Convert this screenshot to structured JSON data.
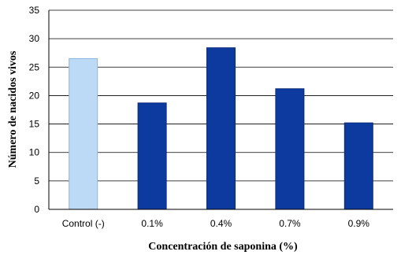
{
  "chart_data": {
    "type": "bar",
    "title": "",
    "xlabel": "Concentración de saponina (%)",
    "ylabel": "Número de nacidos vivos",
    "categories": [
      "Control (-)",
      "0.1%",
      "0.4%",
      "0.7%",
      "0.9%"
    ],
    "values": [
      26.5,
      18.7,
      28.4,
      21.2,
      15.2
    ],
    "ylim": [
      0,
      35
    ],
    "yticks": [
      0,
      5,
      10,
      15,
      20,
      25,
      30,
      35
    ],
    "grid": "horizontal",
    "legend": "none",
    "bar_colors": [
      "#bcd9f5",
      "#0d3a9e",
      "#0d3a9e",
      "#0d3a9e",
      "#0d3a9e"
    ],
    "bar_edge_colors": [
      "#8fb5e0",
      "#0a2a78",
      "#0a2a78",
      "#0a2a78",
      "#0a2a78"
    ]
  }
}
